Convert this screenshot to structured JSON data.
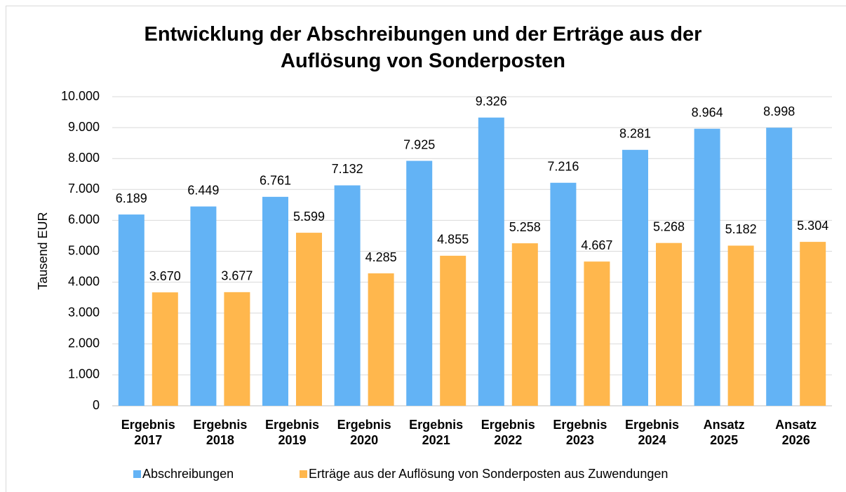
{
  "chart_data": {
    "type": "bar",
    "title": "Entwicklung der Abschreibungen und der Erträge aus der Auflösung von Sonderposten",
    "y_label": "Tausend EUR",
    "categories": [
      "Ergebnis 2017",
      "Ergebnis 2018",
      "Ergebnis 2019",
      "Ergebnis 2020",
      "Ergebnis 2021",
      "Ergebnis 2022",
      "Ergebnis 2023",
      "Ergebnis 2024",
      "Ansatz 2025",
      "Ansatz 2026"
    ],
    "series": [
      {
        "name": "Abschreibungen",
        "color": "#63b3f5",
        "values": [
          6189,
          6449,
          6761,
          7132,
          7925,
          9326,
          7216,
          8281,
          8964,
          8998
        ],
        "value_labels": [
          "6.189",
          "6.449",
          "6.761",
          "7.132",
          "7.925",
          "9.326",
          "7.216",
          "8.281",
          "8.964",
          "8.998"
        ]
      },
      {
        "name": "Erträge aus der Auflösung von Sonderposten aus Zuwendungen",
        "color": "#ffb74d",
        "values": [
          3670,
          3677,
          5599,
          4285,
          4855,
          5258,
          4667,
          5268,
          5182,
          5304
        ],
        "value_labels": [
          "3.670",
          "3.677",
          "5.599",
          "4.285",
          "4.855",
          "5.258",
          "4.667",
          "5.268",
          "5.182",
          "5.304"
        ]
      }
    ],
    "ylim": [
      0,
      10000
    ],
    "yticks": [
      0,
      {
        "value": 1000,
        "label": "1.000"
      },
      {
        "value": 2000,
        "label": "2.000"
      },
      {
        "value": 3000,
        "label": "3.000"
      },
      {
        "value": 4000,
        "label": "4.000"
      },
      {
        "value": 5000,
        "label": "5.000"
      },
      {
        "value": 6000,
        "label": "6.000"
      },
      {
        "value": 7000,
        "label": "7.000"
      },
      {
        "value": 8000,
        "label": "8.000"
      },
      {
        "value": 9000,
        "label": "9.000"
      },
      {
        "value": 10000,
        "label": "10.000"
      }
    ],
    "grid": true,
    "legend": "bottom"
  }
}
